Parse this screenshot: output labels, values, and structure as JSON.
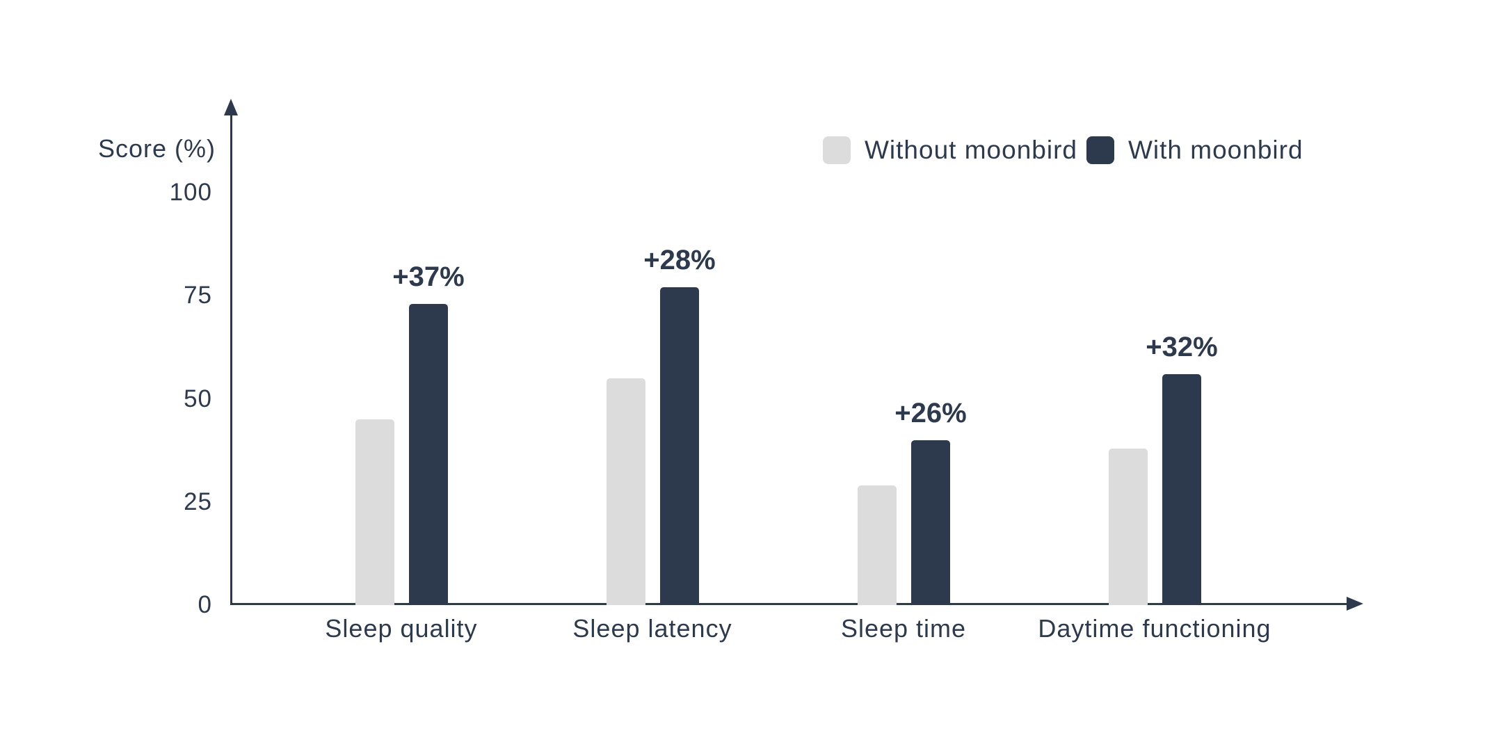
{
  "colors": {
    "background": "#ffffff",
    "axis": "#2d3a4e",
    "text": "#2d3a4e",
    "bar_without": "#dcdcdc",
    "bar_with": "#2d3a4e"
  },
  "chart_data": {
    "type": "bar",
    "title": "",
    "ylabel": "Score (%)",
    "xlabel": "",
    "categories": [
      "Sleep quality",
      "Sleep latency",
      "Sleep time",
      "Daytime functioning"
    ],
    "series": [
      {
        "name": "Without moonbird",
        "color": "#dcdcdc",
        "values": [
          45,
          55,
          29,
          38
        ]
      },
      {
        "name": "With moonbird",
        "color": "#2d3a4e",
        "values": [
          73,
          77,
          40,
          56
        ]
      }
    ],
    "annotations": [
      "+37%",
      "+28%",
      "+26%",
      "+32%"
    ],
    "yticks": [
      0,
      25,
      50,
      75,
      100
    ],
    "ylim": [
      0,
      100
    ],
    "grid": false,
    "legend_position": "top-right"
  }
}
